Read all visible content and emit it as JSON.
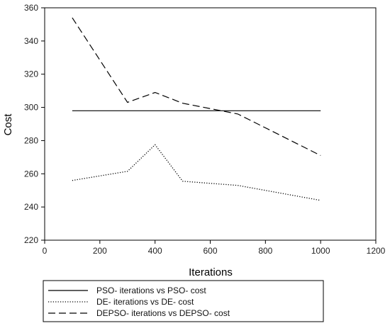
{
  "chart_data": {
    "type": "line",
    "title": "",
    "xlabel": "Iterations",
    "ylabel": "Cost",
    "xlim": [
      0,
      1200
    ],
    "ylim": [
      220,
      360
    ],
    "xticks": [
      0,
      200,
      400,
      600,
      800,
      1000,
      1200
    ],
    "yticks": [
      220,
      240,
      260,
      280,
      300,
      320,
      340,
      360
    ],
    "grid": false,
    "legend_position": "bottom",
    "series": [
      {
        "name": "PSO- iterations vs PSO- cost",
        "style": "solid",
        "x": [
          100,
          1000
        ],
        "y": [
          298,
          298
        ]
      },
      {
        "name": "DE- iterations vs DE- cost",
        "style": "dotted",
        "x": [
          100,
          300,
          400,
          500,
          700,
          1000
        ],
        "y": [
          256,
          261.5,
          277.5,
          255.5,
          253,
          244
        ]
      },
      {
        "name": "DEPSO- iterations vs DEPSO- cost",
        "style": "dashed",
        "x": [
          100,
          300,
          400,
          500,
          700,
          1000
        ],
        "y": [
          354,
          303,
          309,
          302.5,
          296,
          271
        ]
      }
    ]
  }
}
